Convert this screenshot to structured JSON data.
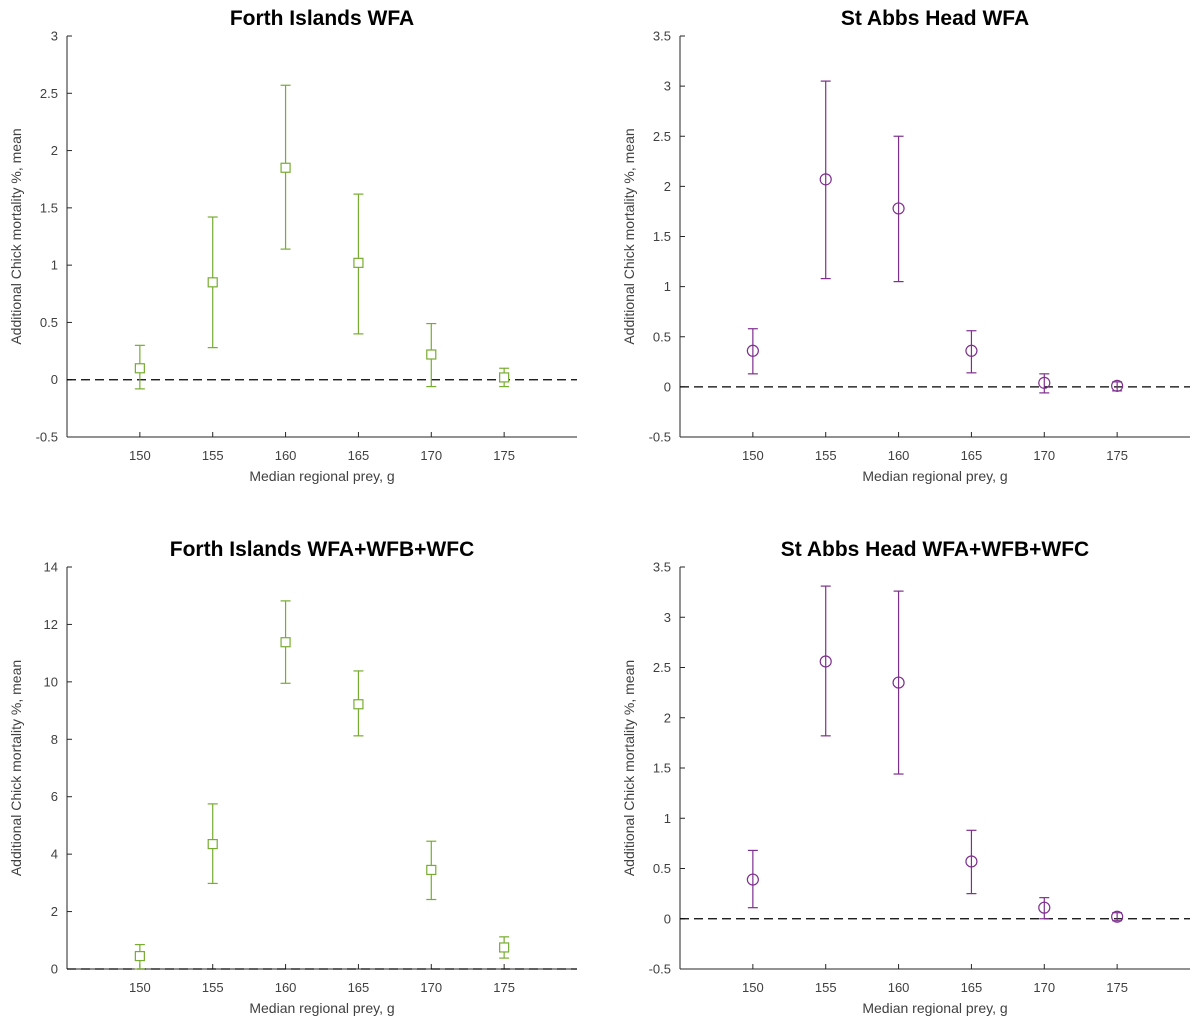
{
  "chart_data": [
    {
      "type": "scatter",
      "title": "Forth Islands WFA",
      "xlabel": "Median regional prey, g",
      "ylabel": "Additional Chick mortality %, mean",
      "xlim": [
        145,
        180
      ],
      "ylim": [
        -0.5,
        3
      ],
      "xticks": [
        150,
        155,
        160,
        165,
        170,
        175
      ],
      "yticks": [
        -0.5,
        0,
        0.5,
        1,
        1.5,
        2,
        2.5,
        3
      ],
      "ytick_labels": [
        "-0.5",
        "0",
        "0.5",
        "1",
        "1.5",
        "2",
        "2.5",
        "3"
      ],
      "reference_line": 0,
      "marker": "square",
      "color": "#77AC30",
      "points": [
        {
          "x": 150,
          "mean": 0.1,
          "lower": -0.08,
          "upper": 0.3
        },
        {
          "x": 155,
          "mean": 0.85,
          "lower": 0.28,
          "upper": 1.42
        },
        {
          "x": 160,
          "mean": 1.85,
          "lower": 1.14,
          "upper": 2.57
        },
        {
          "x": 165,
          "mean": 1.02,
          "lower": 0.4,
          "upper": 1.62
        },
        {
          "x": 170,
          "mean": 0.22,
          "lower": -0.06,
          "upper": 0.49
        },
        {
          "x": 175,
          "mean": 0.02,
          "lower": -0.06,
          "upper": 0.1
        }
      ]
    },
    {
      "type": "scatter",
      "title": "St Abbs Head WFA",
      "xlabel": "Median regional prey, g",
      "ylabel": "Additional Chick mortality %, mean",
      "xlim": [
        145,
        180
      ],
      "ylim": [
        -0.5,
        3.5
      ],
      "xticks": [
        150,
        155,
        160,
        165,
        170,
        175
      ],
      "yticks": [
        -0.5,
        0,
        0.5,
        1,
        1.5,
        2,
        2.5,
        3,
        3.5
      ],
      "ytick_labels": [
        "-0.5",
        "0",
        "0.5",
        "1",
        "1.5",
        "2",
        "2.5",
        "3",
        "3.5"
      ],
      "reference_line": 0,
      "marker": "circle",
      "color": "#7E2F8E",
      "points": [
        {
          "x": 150,
          "mean": 0.36,
          "lower": 0.13,
          "upper": 0.58
        },
        {
          "x": 155,
          "mean": 2.07,
          "lower": 1.08,
          "upper": 3.05
        },
        {
          "x": 160,
          "mean": 1.78,
          "lower": 1.05,
          "upper": 2.5
        },
        {
          "x": 165,
          "mean": 0.36,
          "lower": 0.14,
          "upper": 0.56
        },
        {
          "x": 170,
          "mean": 0.04,
          "lower": -0.06,
          "upper": 0.13
        },
        {
          "x": 175,
          "mean": 0.01,
          "lower": -0.04,
          "upper": 0.05
        }
      ]
    },
    {
      "type": "scatter",
      "title": "Forth Islands WFA+WFB+WFC",
      "xlabel": "Median regional prey, g",
      "ylabel": "Additional Chick mortality %, mean",
      "xlim": [
        145,
        180
      ],
      "ylim": [
        0,
        14
      ],
      "xticks": [
        150,
        155,
        160,
        165,
        170,
        175
      ],
      "yticks": [
        0,
        2,
        4,
        6,
        8,
        10,
        12,
        14
      ],
      "ytick_labels": [
        "0",
        "2",
        "4",
        "6",
        "8",
        "10",
        "12",
        "14"
      ],
      "reference_line": 0,
      "marker": "square",
      "color": "#77AC30",
      "points": [
        {
          "x": 150,
          "mean": 0.45,
          "lower": 0.0,
          "upper": 0.85
        },
        {
          "x": 155,
          "mean": 4.35,
          "lower": 2.98,
          "upper": 5.75
        },
        {
          "x": 160,
          "mean": 11.38,
          "lower": 9.95,
          "upper": 12.82
        },
        {
          "x": 165,
          "mean": 9.22,
          "lower": 8.12,
          "upper": 10.38
        },
        {
          "x": 170,
          "mean": 3.45,
          "lower": 2.42,
          "upper": 4.45
        },
        {
          "x": 175,
          "mean": 0.75,
          "lower": 0.38,
          "upper": 1.12
        }
      ]
    },
    {
      "type": "scatter",
      "title": "St Abbs Head WFA+WFB+WFC",
      "xlabel": "Median regional prey, g",
      "ylabel": "Additional Chick mortality %, mean",
      "xlim": [
        145,
        180
      ],
      "ylim": [
        -0.5,
        3.5
      ],
      "xticks": [
        150,
        155,
        160,
        165,
        170,
        175
      ],
      "yticks": [
        -0.5,
        0,
        0.5,
        1,
        1.5,
        2,
        2.5,
        3,
        3.5
      ],
      "ytick_labels": [
        "-0.5",
        "0",
        "0.5",
        "1",
        "1.5",
        "2",
        "2.5",
        "3",
        "3.5"
      ],
      "reference_line": 0,
      "marker": "circle",
      "color": "#7E2F8E",
      "points": [
        {
          "x": 150,
          "mean": 0.39,
          "lower": 0.11,
          "upper": 0.68
        },
        {
          "x": 155,
          "mean": 2.56,
          "lower": 1.82,
          "upper": 3.31
        },
        {
          "x": 160,
          "mean": 2.35,
          "lower": 1.44,
          "upper": 3.26
        },
        {
          "x": 165,
          "mean": 0.57,
          "lower": 0.25,
          "upper": 0.88
        },
        {
          "x": 170,
          "mean": 0.11,
          "lower": 0.0,
          "upper": 0.21
        },
        {
          "x": 175,
          "mean": 0.02,
          "lower": -0.02,
          "upper": 0.06
        }
      ]
    }
  ]
}
